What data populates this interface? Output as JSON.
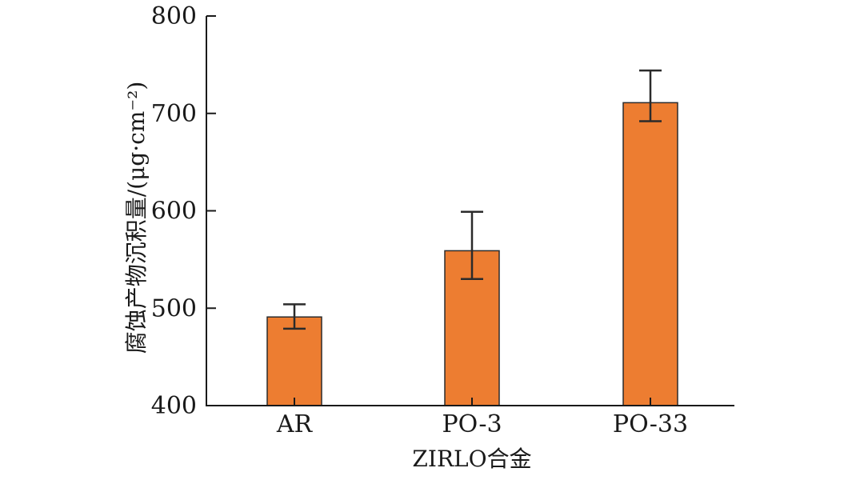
{
  "chart_data": {
    "type": "bar",
    "categories": [
      "AR",
      "PO-3",
      "PO-33"
    ],
    "values": [
      491,
      559,
      711
    ],
    "error_upper": [
      504,
      599,
      744
    ],
    "error_lower": [
      479,
      530,
      692
    ],
    "ylim": [
      400,
      800
    ],
    "yticks": [
      400,
      500,
      600,
      700,
      800
    ],
    "xlabel": "ZIRLO合金",
    "ylabel": "腐蚀产物沉积量/(μg·cm⁻²)",
    "bar_color": "#ed7d31",
    "grid": false
  }
}
